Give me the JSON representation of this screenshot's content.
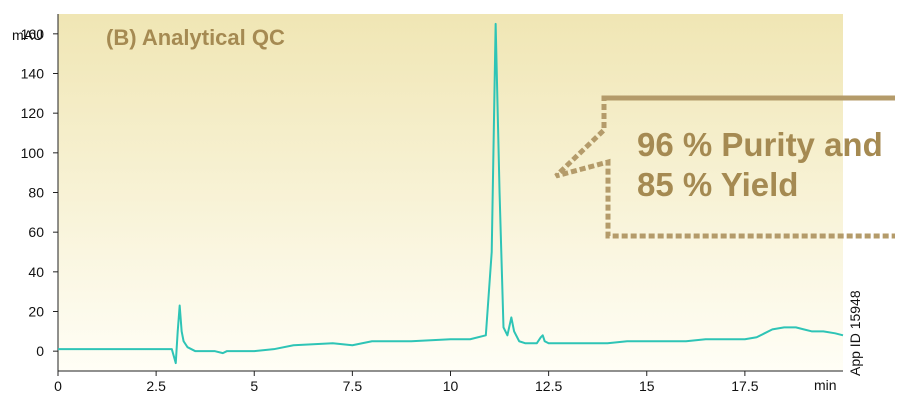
{
  "colors": {
    "trace": "#2ec4b6",
    "panel_title": "#a58a52",
    "callout_border": "#b49b6a",
    "bg_top": "#f0e6b4",
    "bg_bottom": "#fffef6"
  },
  "chart_data": {
    "type": "line",
    "title": "(B) Analytical QC",
    "xlabel": "min",
    "ylabel": "mAU",
    "xlim": [
      0,
      20
    ],
    "ylim": [
      -10,
      170
    ],
    "grid": false,
    "x_ticks": [
      "0",
      "2.5",
      "5",
      "7.5",
      "10",
      "12.5",
      "15",
      "17.5"
    ],
    "y_ticks": [
      "0",
      "20",
      "40",
      "60",
      "80",
      "100",
      "120",
      "140",
      "160"
    ],
    "series": [
      {
        "x": [
          0,
          1,
          2,
          2.9,
          3.0,
          3.05,
          3.1,
          3.15,
          3.2,
          3.3,
          3.5,
          4.0,
          4.2,
          4.3,
          5.0,
          5.5,
          6.0,
          7.0,
          7.5,
          8.0,
          9.0,
          10.0,
          10.5,
          10.9,
          11.05,
          11.15,
          11.25,
          11.35,
          11.45,
          11.55,
          11.62,
          11.75,
          11.9,
          12.2,
          12.3,
          12.35,
          12.4,
          12.5,
          13.0,
          14.0,
          14.5,
          15.0,
          15.5,
          16.0,
          16.5,
          17.0,
          17.5,
          17.8,
          18.0,
          18.2,
          18.5,
          18.8,
          19.0,
          19.2,
          19.5,
          19.8,
          20.0
        ],
        "y": [
          1,
          1,
          1,
          1,
          -6,
          10,
          23,
          10,
          5,
          2,
          0,
          0,
          -1,
          0,
          0,
          1,
          3,
          4,
          3,
          5,
          5,
          6,
          6,
          8,
          50,
          165,
          80,
          12,
          8,
          17,
          10,
          5,
          4,
          4,
          7,
          8,
          5,
          4,
          4,
          4,
          5,
          5,
          5,
          5,
          6,
          6,
          6,
          7,
          9,
          11,
          12,
          12,
          11,
          10,
          10,
          9,
          8
        ]
      }
    ],
    "annotations": [
      "96 % Purity and",
      "85 % Yield"
    ],
    "side_label": "App ID 15948"
  }
}
